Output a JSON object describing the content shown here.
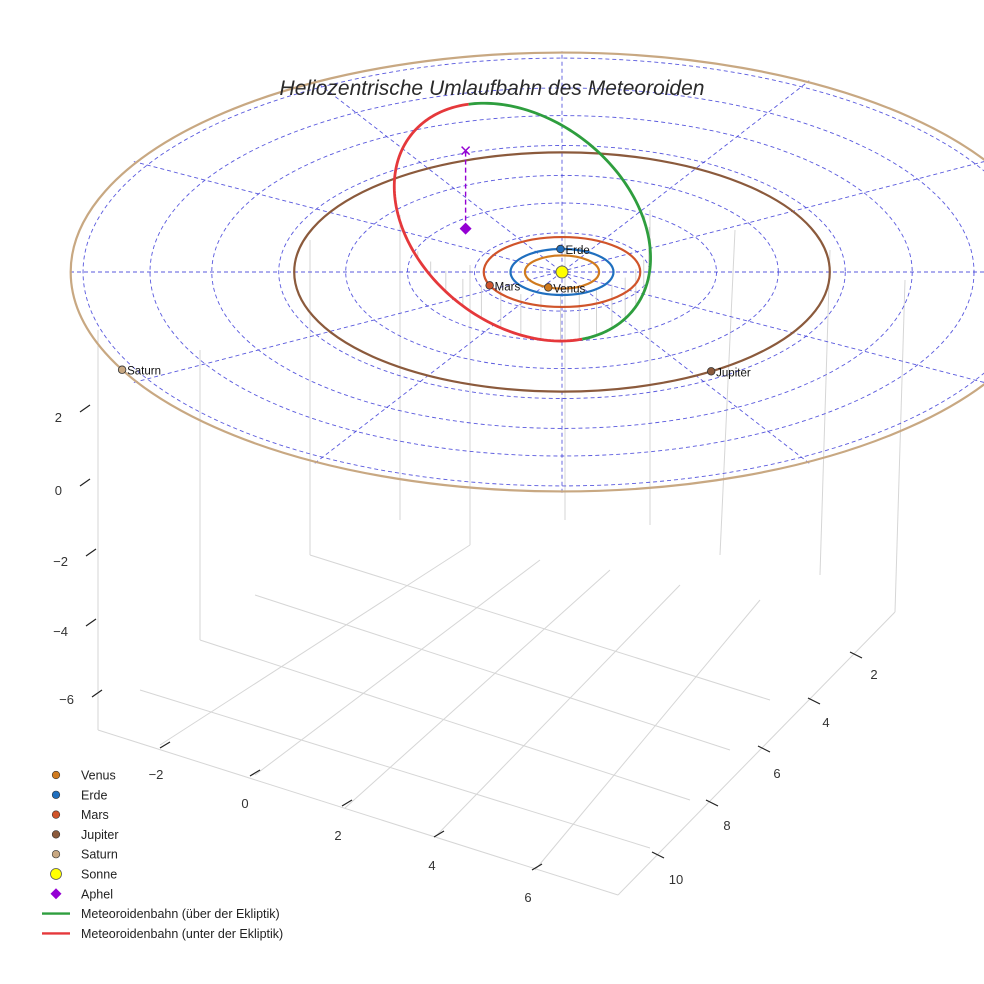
{
  "chart_data": {
    "type": "scatter3d",
    "title": "Heliozentrische Umlaufbahn des Meteoroiden",
    "colors": {
      "venus": "#d07a1e",
      "erde": "#1f6fbf",
      "mars": "#d0542a",
      "jupiter": "#8b5a3c",
      "saturn": "#c8a882",
      "sonne": "#ffff00",
      "aphel": "#9400d3",
      "above": "#2e9e3e",
      "below": "#e5383b",
      "grid": "#3c3cd8"
    },
    "axes": {
      "x_ticks": [
        "−2",
        "0",
        "2",
        "4",
        "6"
      ],
      "y_ticks": [
        "2",
        "4",
        "6",
        "8",
        "10"
      ],
      "z_ticks": [
        "2",
        "0",
        "−2",
        "−4",
        "−6"
      ],
      "xlim": [
        -3.5,
        7.5
      ],
      "ylim": [
        1,
        11
      ],
      "zlim": [
        -6.5,
        3
      ]
    },
    "planets": [
      {
        "key": "venus",
        "name": "Venus",
        "a": 0.72
      },
      {
        "key": "erde",
        "name": "Erde",
        "a": 1.0
      },
      {
        "key": "mars",
        "name": "Mars",
        "a": 1.52
      },
      {
        "key": "jupiter",
        "name": "Jupiter",
        "a": 5.2
      },
      {
        "key": "saturn",
        "name": "Saturn",
        "a": 9.54
      }
    ],
    "meteoroid": {
      "perihelion_au": 1.0,
      "aphelion_au": 5.6,
      "aphel_below_ecliptic_au": 2.6
    },
    "legend": [
      {
        "key": "venus",
        "label": "Venus",
        "marker": "circle"
      },
      {
        "key": "erde",
        "label": "Erde",
        "marker": "circle"
      },
      {
        "key": "mars",
        "label": "Mars",
        "marker": "circle"
      },
      {
        "key": "jupiter",
        "label": "Jupiter",
        "marker": "circle"
      },
      {
        "key": "saturn",
        "label": "Saturn",
        "marker": "circle"
      },
      {
        "key": "sonne",
        "label": "Sonne",
        "marker": "circle-large"
      },
      {
        "key": "aphel",
        "label": "Aphel",
        "marker": "diamond"
      },
      {
        "key": "above",
        "label": "Meteoroidenbahn (über der Ekliptik)",
        "marker": "line"
      },
      {
        "key": "below",
        "label": "Meteoroidenbahn (unter der Ekliptik)",
        "marker": "line"
      }
    ]
  }
}
